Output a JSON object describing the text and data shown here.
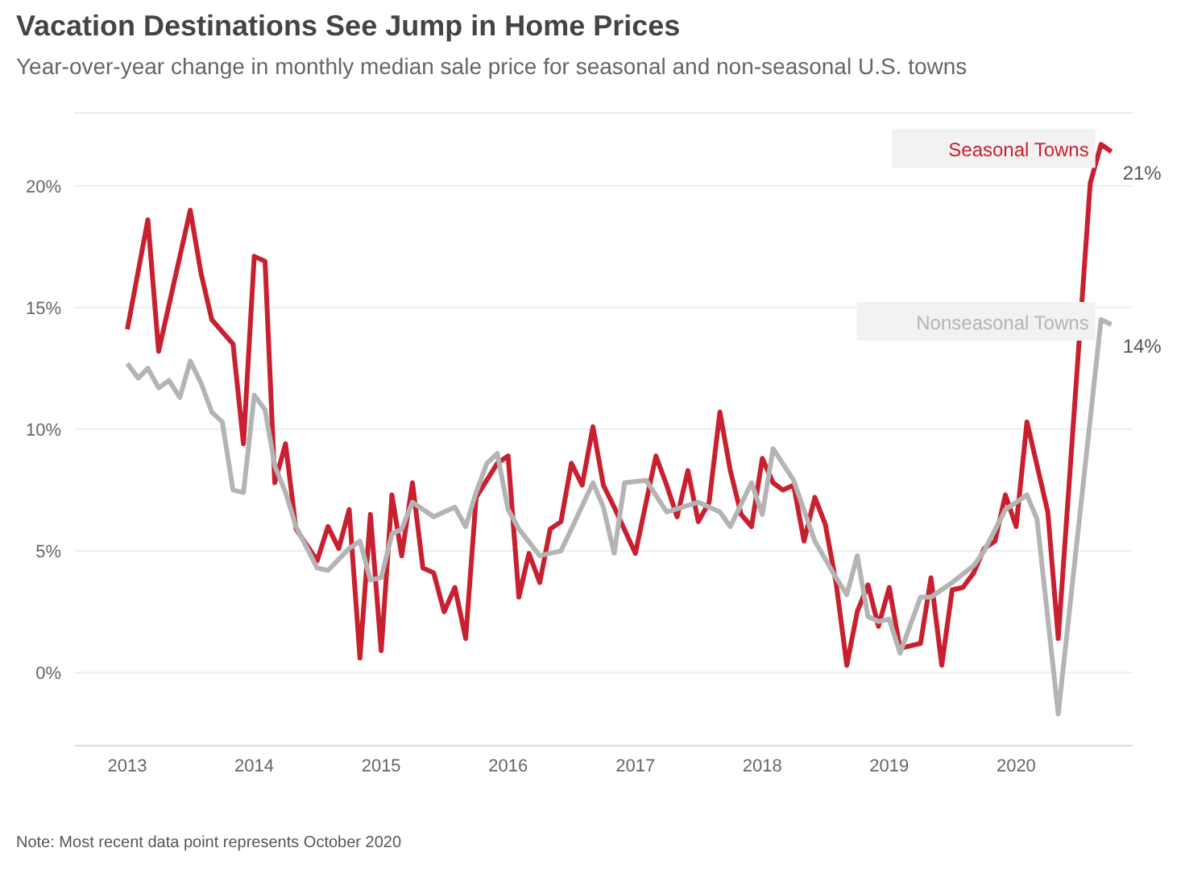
{
  "chart_data": {
    "type": "line",
    "title": "Vacation Destinations See Jump in Home Prices",
    "subtitle": "Year-over-year change in monthly median sale price for seasonal and non-seasonal U.S. towns",
    "series": [
      {
        "name": "Seasonal Towns",
        "color": "#c8202f",
        "x": [
          "2013-01",
          "2013-03",
          "2013-04",
          "2013-07",
          "2013-08",
          "2013-09",
          "2013-11",
          "2013-12",
          "2014-01",
          "2014-02",
          "2014-03",
          "2014-04",
          "2014-05",
          "2014-07",
          "2014-08",
          "2014-09",
          "2014-10",
          "2014-11",
          "2014-12",
          "2015-01",
          "2015-02",
          "2015-03",
          "2015-04",
          "2015-05",
          "2015-06",
          "2015-07",
          "2015-08",
          "2015-09",
          "2015-10",
          "2015-12",
          "2016-01",
          "2016-02",
          "2016-03",
          "2016-04",
          "2016-05",
          "2016-06",
          "2016-07",
          "2016-08",
          "2016-09",
          "2016-10",
          "2016-11",
          "2017-01",
          "2017-03",
          "2017-04",
          "2017-05",
          "2017-06",
          "2017-07",
          "2017-08",
          "2017-09",
          "2017-10",
          "2017-11",
          "2017-12",
          "2018-01",
          "2018-02",
          "2018-03",
          "2018-04",
          "2018-05",
          "2018-06",
          "2018-07",
          "2018-08",
          "2018-09",
          "2018-10",
          "2018-11",
          "2018-12",
          "2019-01",
          "2019-02",
          "2019-04",
          "2019-05",
          "2019-06",
          "2019-07",
          "2019-08",
          "2019-09",
          "2019-10",
          "2019-11",
          "2019-12",
          "2020-01",
          "2020-02",
          "2020-04",
          "2020-05",
          "2020-08",
          "2020-09",
          "2020-10"
        ],
        "values": [
          14.1,
          18.6,
          13.2,
          19.0,
          16.4,
          14.5,
          13.5,
          9.4,
          17.1,
          16.9,
          7.8,
          9.4,
          5.9,
          4.6,
          6.0,
          5.1,
          6.7,
          0.6,
          6.5,
          0.9,
          7.3,
          4.8,
          7.8,
          4.3,
          4.1,
          2.5,
          3.5,
          1.4,
          7.2,
          8.6,
          8.9,
          3.1,
          4.9,
          3.7,
          5.9,
          6.2,
          8.6,
          7.7,
          10.1,
          7.7,
          6.8,
          4.9,
          8.9,
          7.7,
          6.4,
          8.3,
          6.2,
          7.0,
          10.7,
          8.3,
          6.5,
          6.0,
          8.8,
          7.8,
          7.5,
          7.7,
          5.4,
          7.2,
          6.1,
          3.7,
          0.3,
          2.5,
          3.6,
          1.9,
          3.5,
          1.0,
          1.2,
          3.9,
          0.3,
          3.4,
          3.5,
          4.1,
          5.1,
          5.4,
          7.3,
          6.0,
          10.3,
          6.6,
          1.4,
          20.1,
          21.7,
          21.4
        ]
      },
      {
        "name": "Nonseasonal Towns",
        "color": "#b4b4b4",
        "x": [
          "2013-01",
          "2013-02",
          "2013-03",
          "2013-04",
          "2013-05",
          "2013-06",
          "2013-07",
          "2013-08",
          "2013-09",
          "2013-10",
          "2013-11",
          "2013-12",
          "2014-01",
          "2014-02",
          "2014-03",
          "2014-04",
          "2014-05",
          "2014-07",
          "2014-08",
          "2014-10",
          "2014-11",
          "2014-12",
          "2015-01",
          "2015-02",
          "2015-03",
          "2015-04",
          "2015-06",
          "2015-08",
          "2015-09",
          "2015-10",
          "2015-11",
          "2015-12",
          "2016-01",
          "2016-02",
          "2016-04",
          "2016-06",
          "2016-07",
          "2016-09",
          "2016-10",
          "2016-11",
          "2016-12",
          "2017-02",
          "2017-04",
          "2017-07",
          "2017-09",
          "2017-10",
          "2017-12",
          "2018-01",
          "2018-02",
          "2018-04",
          "2018-06",
          "2018-08",
          "2018-09",
          "2018-10",
          "2018-11",
          "2018-12",
          "2019-01",
          "2019-02",
          "2019-04",
          "2019-05",
          "2019-07",
          "2019-09",
          "2019-10",
          "2019-12",
          "2020-02",
          "2020-03",
          "2020-05",
          "2020-09",
          "2020-10"
        ],
        "values": [
          12.7,
          12.1,
          12.5,
          11.7,
          12.0,
          11.3,
          12.8,
          11.9,
          10.7,
          10.3,
          7.5,
          7.4,
          11.4,
          10.8,
          8.5,
          7.4,
          6.0,
          4.3,
          4.2,
          5.1,
          5.4,
          3.8,
          3.9,
          5.7,
          5.9,
          7.0,
          6.4,
          6.8,
          6.0,
          7.4,
          8.6,
          9.0,
          6.7,
          5.9,
          4.8,
          5.0,
          5.9,
          7.8,
          6.8,
          4.9,
          7.8,
          7.9,
          6.6,
          7.0,
          6.6,
          6.0,
          7.8,
          6.5,
          9.2,
          7.9,
          5.4,
          3.9,
          3.2,
          4.8,
          2.3,
          2.1,
          2.2,
          0.8,
          3.1,
          3.1,
          3.7,
          4.4,
          5.0,
          6.7,
          7.3,
          6.3,
          -1.7,
          14.5,
          14.3
        ]
      }
    ],
    "annotations": [
      {
        "text": "21%",
        "x": "2020-10",
        "y": 21.4
      },
      {
        "text": "14%",
        "x": "2020-10",
        "y": 14.3
      },
      "Note: Most recent data point represents October 2020"
    ],
    "xlim": [
      "2012-08",
      "2020-12"
    ],
    "xticks": [
      "2013",
      "2014",
      "2015",
      "2016",
      "2017",
      "2018",
      "2019",
      "2020"
    ],
    "ylim": [
      -3,
      23
    ],
    "yticks": [
      {
        "value": 0,
        "label": "0%"
      },
      {
        "value": 5,
        "label": "5%"
      },
      {
        "value": 10,
        "label": "10%"
      },
      {
        "value": 15,
        "label": "15%"
      },
      {
        "value": 20,
        "label": "20%"
      }
    ],
    "grid": "y",
    "legend": false,
    "marker": "none",
    "line_style": "solid"
  }
}
